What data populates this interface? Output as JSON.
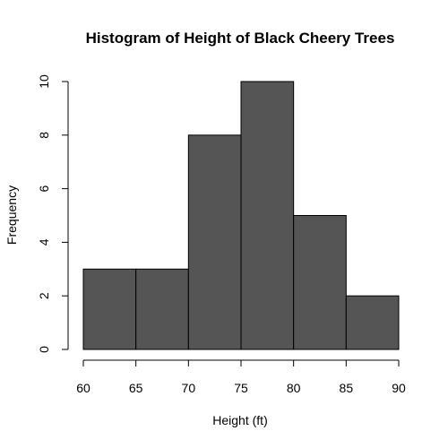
{
  "chart_data": {
    "type": "bar",
    "title": "Histogram of Height of Black Cheery Trees",
    "xlabel": "Height (ft)",
    "ylabel": "Frequency",
    "bins": [
      {
        "start": 60,
        "end": 65,
        "count": 3
      },
      {
        "start": 65,
        "end": 70,
        "count": 3
      },
      {
        "start": 70,
        "end": 75,
        "count": 8
      },
      {
        "start": 75,
        "end": 80,
        "count": 10
      },
      {
        "start": 80,
        "end": 85,
        "count": 5
      },
      {
        "start": 85,
        "end": 90,
        "count": 2
      }
    ],
    "xlim": [
      60,
      90
    ],
    "ylim": [
      0,
      10
    ],
    "xticks": [
      "60",
      "65",
      "70",
      "75",
      "80",
      "85",
      "90"
    ],
    "yticks": [
      "0",
      "2",
      "4",
      "6",
      "8",
      "10"
    ],
    "grid": false,
    "bar_color": "#555555"
  }
}
